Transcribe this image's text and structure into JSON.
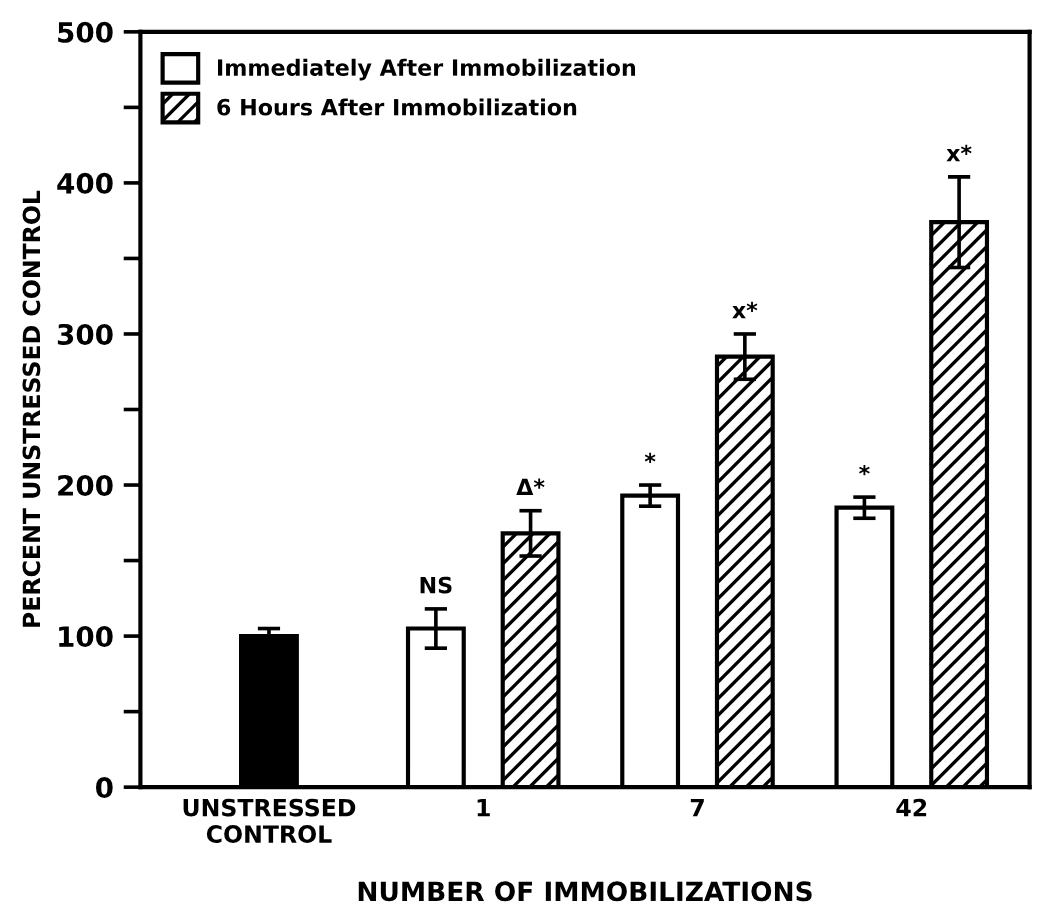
{
  "chart_data": {
    "type": "bar",
    "xlabel": "NUMBER OF IMMOBILIZATIONS",
    "ylabel": "PERCENT UNSTRESSED CONTROL",
    "categories": [
      "UNSTRESSED\nCONTROL",
      "1",
      "7",
      "42"
    ],
    "series": [
      {
        "color": "#000000",
        "values": [
          100,
          null,
          null,
          null
        ],
        "errors": [
          5,
          null,
          null,
          null
        ]
      },
      {
        "name": "Immediately After Immobilization",
        "color": "#ffffff",
        "values": [
          null,
          105,
          193,
          185
        ],
        "errors": [
          null,
          13,
          7,
          7
        ]
      },
      {
        "name": "6 Hours After Immobilization",
        "color": "#000000",
        "values": [
          null,
          168,
          285,
          374
        ],
        "errors": [
          null,
          15,
          15,
          30
        ]
      }
    ],
    "ylim": [
      0,
      500
    ],
    "yticks": [
      0,
      {
        "value": 50,
        "label": null
      },
      100,
      {
        "value": 150,
        "label": null
      },
      200,
      {
        "value": 250,
        "label": null
      },
      300,
      {
        "value": 350,
        "label": null
      },
      400,
      {
        "value": 450,
        "label": null
      },
      500
    ],
    "annotations": [
      "NS",
      "Δ*",
      "*",
      "x*",
      "*",
      "x*"
    ],
    "legend": "top left",
    "grid": false
  }
}
